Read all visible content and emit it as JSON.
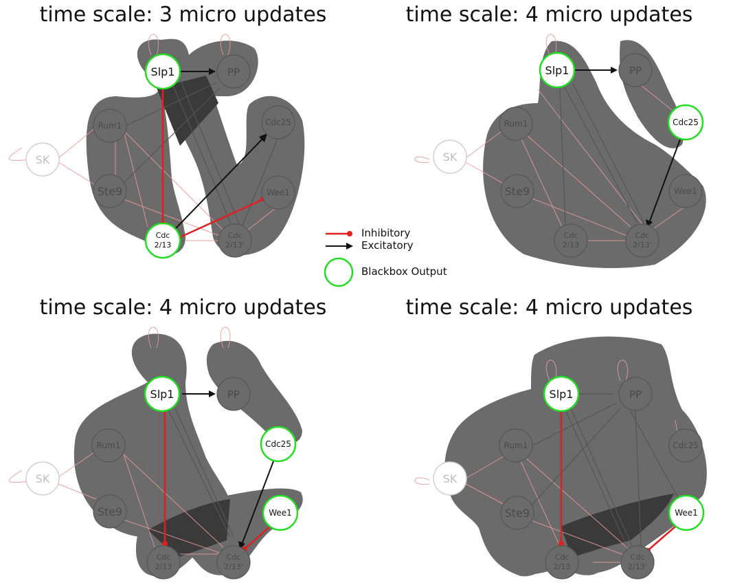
{
  "colors": {
    "inhibitory": "#e02020",
    "excitatory": "#111111",
    "blackbox_output": "#22dd22",
    "hull": "#6b6b6b",
    "hull_overlap": "#3a3a3a"
  },
  "legend": {
    "inhibitory": "Inhibitory",
    "excitatory": "Excitatory",
    "blackbox_output": "Blackbox Output"
  },
  "node_labels": {
    "SK": "SK",
    "Slp1": "Slp1",
    "PP": "PP",
    "Rum1": "Rum1",
    "Cdc25": "Cdc25",
    "Ste9": "Ste9",
    "Wee1": "Wee1",
    "Cdc": "Cdc",
    "Cdc213": "2/13",
    "Cdc213p": "2/13'"
  },
  "panels": [
    {
      "title": "time scale: 3 micro updates",
      "outputs": [
        "Slp1",
        "Cdc213"
      ],
      "highlighted_edges": [
        {
          "from": "Slp1",
          "to": "PP",
          "kind": "excitatory"
        },
        {
          "from": "Slp1",
          "to": "Cdc213",
          "kind": "inhibitory"
        },
        {
          "from": "Cdc213",
          "to": "Cdc25",
          "kind": "excitatory"
        },
        {
          "from": "Cdc213",
          "to": "Wee1",
          "kind": "inhibitory"
        }
      ]
    },
    {
      "title": "time scale: 4 micro updates",
      "outputs": [
        "Slp1",
        "Cdc25"
      ],
      "highlighted_edges": [
        {
          "from": "Slp1",
          "to": "PP",
          "kind": "excitatory"
        },
        {
          "from": "Cdc25",
          "to": "Cdc213p",
          "kind": "excitatory"
        }
      ]
    },
    {
      "title": "time scale: 4 micro updates",
      "outputs": [
        "Slp1",
        "Cdc25",
        "Wee1"
      ],
      "highlighted_edges": [
        {
          "from": "Slp1",
          "to": "PP",
          "kind": "excitatory"
        },
        {
          "from": "Slp1",
          "to": "Cdc213",
          "kind": "inhibitory"
        },
        {
          "from": "Cdc25",
          "to": "Cdc213p",
          "kind": "excitatory"
        },
        {
          "from": "Wee1",
          "to": "Cdc213p",
          "kind": "inhibitory"
        }
      ]
    },
    {
      "title": "time scale: 4 micro updates",
      "outputs": [
        "Slp1",
        "Wee1"
      ],
      "highlighted_edges": [
        {
          "from": "Slp1",
          "to": "Cdc213",
          "kind": "inhibitory"
        },
        {
          "from": "Wee1",
          "to": "Cdc213p",
          "kind": "inhibitory"
        }
      ]
    }
  ]
}
